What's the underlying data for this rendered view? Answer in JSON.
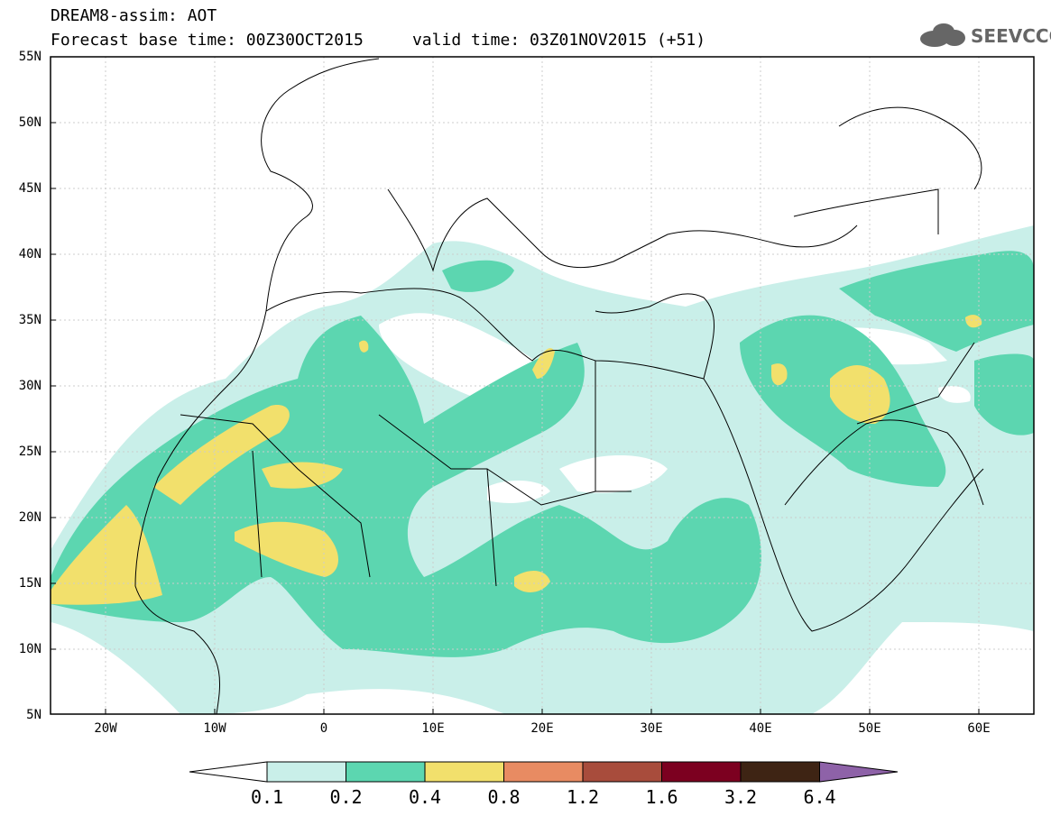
{
  "header": {
    "title_line1": "DREAM8-assim: AOT",
    "title_line2": "Forecast base time: 00Z30OCT2015     valid time: 03Z01NOV2015 (+51)",
    "logo_text": "SEEVCCC"
  },
  "map": {
    "lat_range": [
      5,
      55
    ],
    "lon_range": [
      -25,
      65
    ],
    "lat_labels": [
      "55N",
      "50N",
      "45N",
      "40N",
      "35N",
      "30N",
      "25N",
      "20N",
      "15N",
      "10N",
      "5N"
    ],
    "lon_labels": [
      "20W",
      "10W",
      "0",
      "10E",
      "20E",
      "30E",
      "40E",
      "50E",
      "60E"
    ],
    "field": "AOT"
  },
  "colorbar": {
    "labels": [
      "0.1",
      "0.2",
      "0.4",
      "0.8",
      "1.2",
      "1.6",
      "3.2",
      "6.4"
    ],
    "colors": [
      "#ffffff",
      "#c9efe9",
      "#5cd6b0",
      "#f2e06c",
      "#e88b62",
      "#a84c3c",
      "#7c0020",
      "#3e2414",
      "#8e62a8"
    ]
  }
}
